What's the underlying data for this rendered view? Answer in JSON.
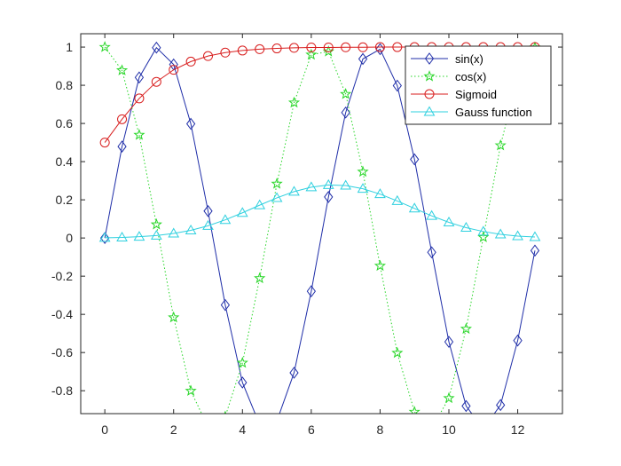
{
  "chart_data": {
    "type": "line",
    "title": "",
    "xlabel": "",
    "ylabel": "",
    "xlim": [
      -0.7,
      13.3
    ],
    "ylim": [
      -0.92,
      1.07
    ],
    "xticks": [
      0,
      2,
      4,
      6,
      8,
      10,
      12
    ],
    "xtick_labels": [
      "0",
      "2",
      "4",
      "6",
      "8",
      "10",
      "12"
    ],
    "yticks": [
      -0.8,
      -0.6,
      -0.4,
      -0.2,
      0,
      0.2,
      0.4,
      0.6,
      0.8,
      1
    ],
    "ytick_labels": [
      "-0.8",
      "-0.6",
      "-0.4",
      "-0.2",
      "0",
      "0.2",
      "0.4",
      "0.6",
      "0.8",
      "1"
    ],
    "grid": false,
    "legend_position": "top-right",
    "x": [
      0,
      0.5,
      1,
      1.5,
      2,
      2.5,
      3,
      3.5,
      4,
      4.5,
      5,
      5.5,
      6,
      6.5,
      7,
      7.5,
      8,
      8.5,
      9,
      9.5,
      10,
      10.5,
      11,
      11.5,
      12,
      12.5
    ],
    "series": [
      {
        "name": "sin(x)",
        "color": "#1f2ea8",
        "line": "solid",
        "marker": "diamond",
        "values": [
          0,
          0.479,
          0.841,
          0.997,
          0.909,
          0.598,
          0.141,
          -0.351,
          -0.757,
          -0.978,
          -0.959,
          -0.706,
          -0.279,
          0.215,
          0.657,
          0.938,
          0.989,
          0.798,
          0.412,
          -0.075,
          -0.544,
          -0.88,
          -1.0,
          -0.875,
          -0.537,
          -0.066
        ]
      },
      {
        "name": "cos(x)",
        "color": "#27d627",
        "line": "dotted",
        "marker": "star",
        "values": [
          1,
          0.878,
          0.54,
          0.071,
          -0.416,
          -0.801,
          -0.99,
          -0.936,
          -0.654,
          -0.211,
          0.284,
          0.709,
          0.96,
          0.977,
          0.754,
          0.347,
          -0.146,
          -0.602,
          -0.911,
          -0.997,
          -0.839,
          -0.476,
          0.004,
          0.485,
          0.844,
          0.998
        ]
      },
      {
        "name": "Sigmoid",
        "color": "#d81e1e",
        "line": "solid",
        "marker": "circle",
        "values": [
          0.5,
          0.622,
          0.731,
          0.818,
          0.881,
          0.924,
          0.953,
          0.971,
          0.982,
          0.989,
          0.993,
          0.996,
          0.998,
          0.998,
          0.999,
          0.999,
          1.0,
          1.0,
          1.0,
          1.0,
          1.0,
          1.0,
          1.0,
          1.0,
          1.0,
          1.0
        ]
      },
      {
        "name": "Gauss function",
        "color": "#2fd0df",
        "line": "solid",
        "marker": "triangle",
        "values": [
          0.001,
          0.003,
          0.007,
          0.013,
          0.024,
          0.04,
          0.064,
          0.095,
          0.132,
          0.172,
          0.21,
          0.243,
          0.266,
          0.278,
          0.275,
          0.258,
          0.23,
          0.194,
          0.155,
          0.116,
          0.082,
          0.054,
          0.034,
          0.019,
          0.01,
          0.005
        ]
      }
    ]
  }
}
